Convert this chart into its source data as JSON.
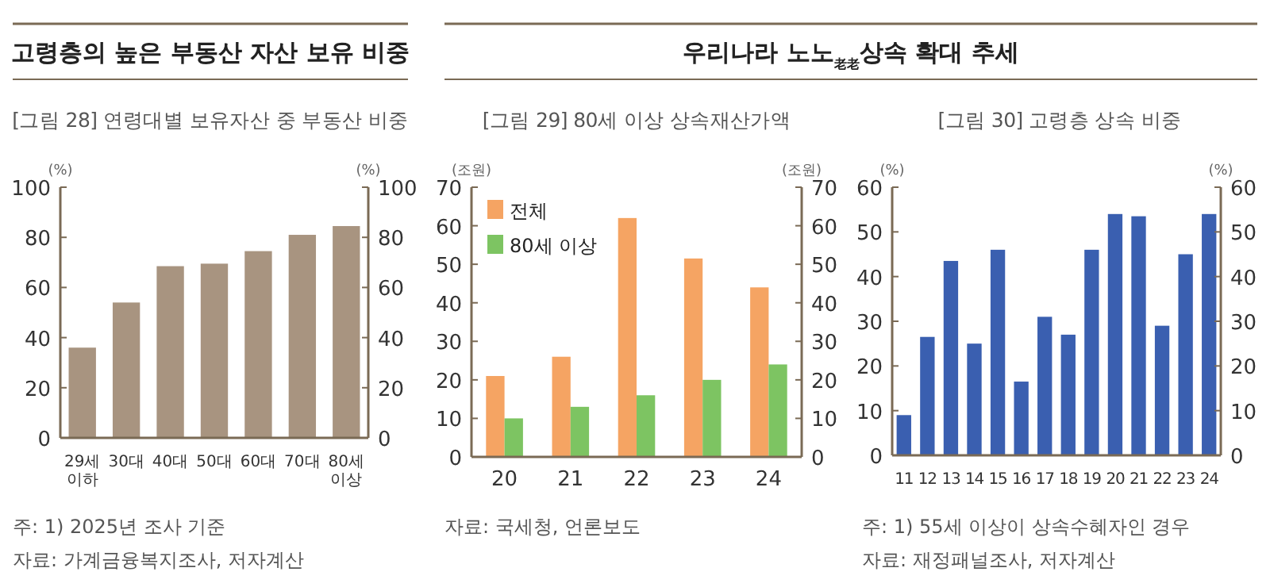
{
  "chart_data": [
    {
      "type": "bar",
      "subtitle": "고령층의 높은 부동산 자산 보유 비중",
      "title": "[그림 28] 연령대별 보유자산 중 부동산 비중",
      "ylabel": "(%)",
      "y2label": "(%)",
      "categories": [
        "29세\n이하",
        "30대",
        "40대",
        "50대",
        "60대",
        "70대",
        "80세\n이상"
      ],
      "series": [
        {
          "color": "#a89480",
          "values": [
            36,
            54,
            68.5,
            69.5,
            74.5,
            81,
            84.5
          ]
        }
      ],
      "ylim": [
        0,
        100
      ],
      "yticks": [
        0,
        20,
        40,
        60,
        80,
        100
      ],
      "y2lim": [
        0,
        100
      ],
      "y2ticks": [
        0,
        20,
        40,
        60,
        80,
        100
      ],
      "grid": false,
      "legend": false,
      "annotations": [
        "주: 1) 2025년 조사 기준",
        "자료: 가계금융복지조사, 저자계산"
      ]
    },
    {
      "type": "bar",
      "subtitle": "우리나라 노노$_{老老}$상속 확대 추세",
      "title": "[그림 29] 80세 이상 상속재산가액",
      "ylabel": "(조원)",
      "y2label": "(조원)",
      "categories": [
        "20",
        "21",
        "22",
        "23",
        "24"
      ],
      "series": [
        {
          "name": "전체",
          "color": "#f5a463",
          "values": [
            21,
            26,
            62,
            51.5,
            44
          ]
        },
        {
          "name": "80세 이상",
          "color": "#7dc462",
          "values": [
            10,
            13,
            16,
            20,
            24
          ]
        }
      ],
      "ylim": [
        0,
        70
      ],
      "yticks": [
        0,
        10,
        20,
        30,
        40,
        50,
        60,
        70
      ],
      "y2lim": [
        0,
        70
      ],
      "y2ticks": [
        0,
        10,
        20,
        30,
        40,
        50,
        60,
        70
      ],
      "grid": false,
      "legend": "top left",
      "annotations": [
        "자료: 국세청, 언론보도"
      ]
    },
    {
      "type": "bar",
      "title": "[그림 30] 고령층 상속 비중",
      "ylabel": "(%)",
      "y2label": "(%)",
      "categories": [
        "11",
        "12",
        "13",
        "14",
        "15",
        "16",
        "17",
        "18",
        "19",
        "20",
        "21",
        "22",
        "23",
        "24"
      ],
      "series": [
        {
          "color": "#3a5fb0",
          "values": [
            9,
            26.5,
            43.5,
            25,
            46,
            16.5,
            31,
            27,
            46,
            54,
            53.5,
            29,
            45,
            54
          ]
        }
      ],
      "ylim": [
        0,
        60
      ],
      "yticks": [
        0,
        10,
        20,
        30,
        40,
        50,
        60
      ],
      "y2lim": [
        0,
        60
      ],
      "y2ticks": [
        0,
        10,
        20,
        30,
        40,
        50,
        60
      ],
      "grid": false,
      "legend": false,
      "annotations": [
        "주: 1) 55세 이상이 상속수혜자인 경우",
        "자료: 재정패널조사, 저자계산"
      ]
    }
  ]
}
